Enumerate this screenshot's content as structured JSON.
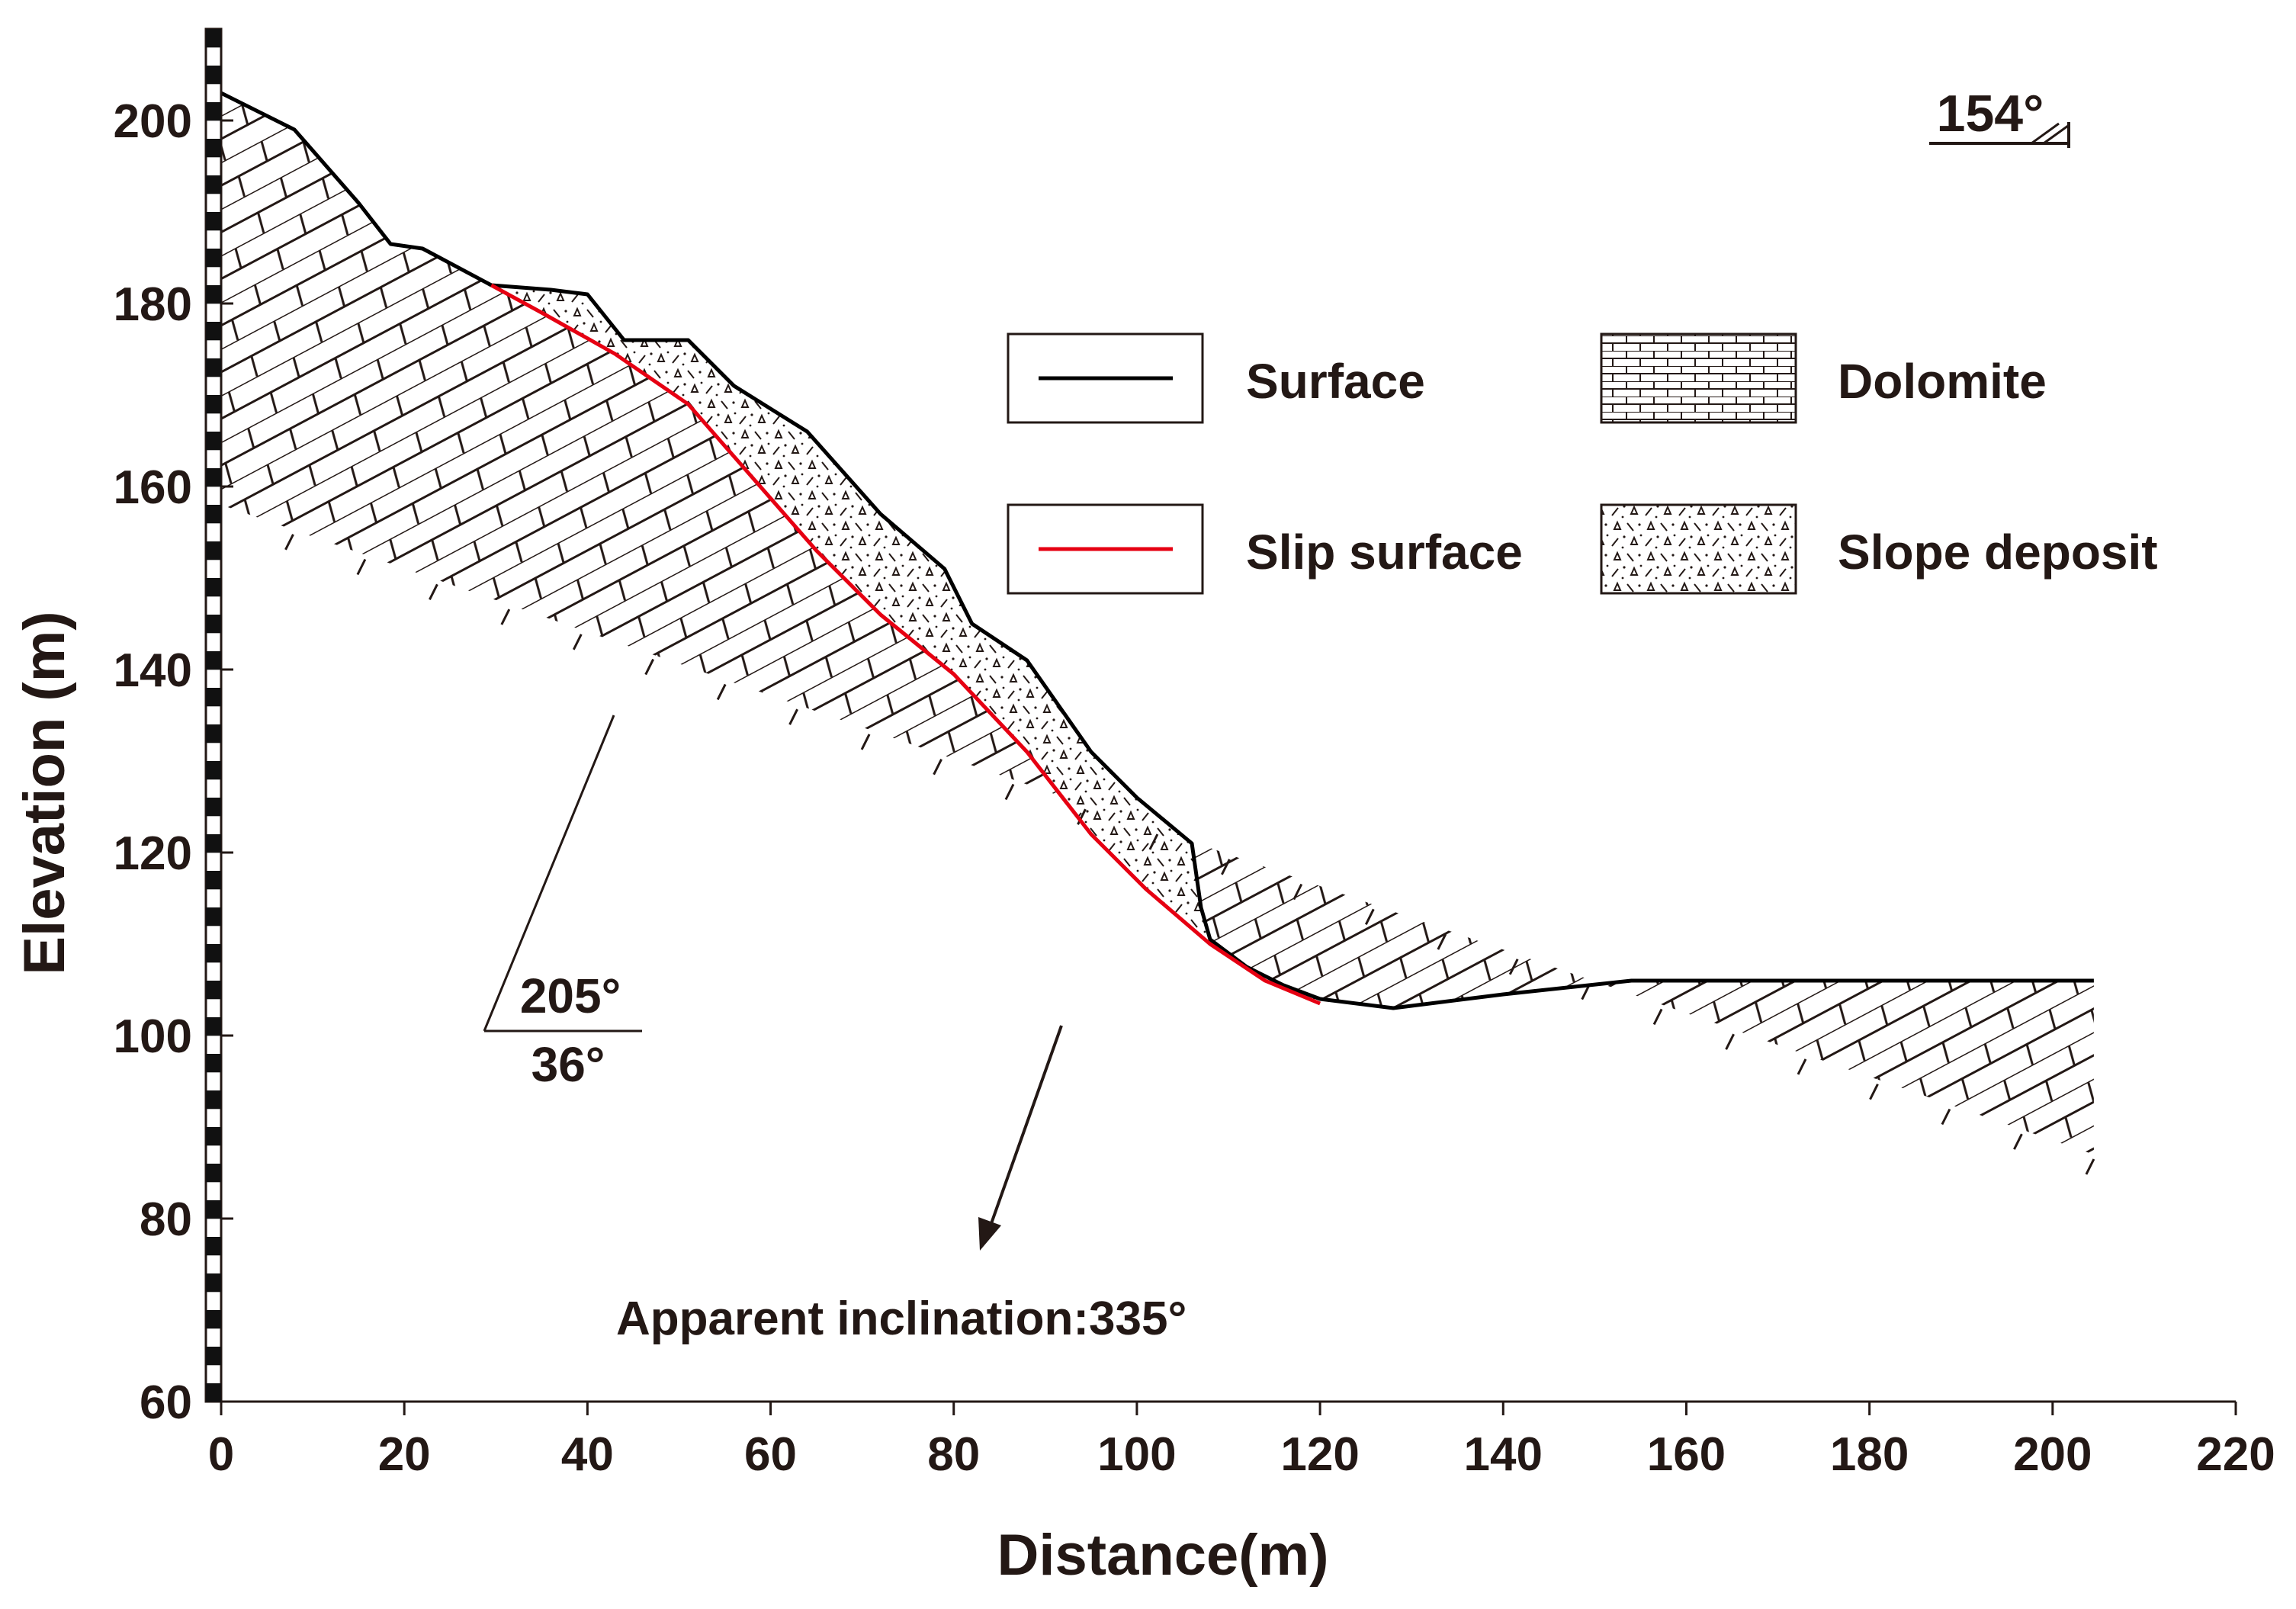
{
  "chart_data": {
    "type": "line",
    "title": "",
    "xlabel": "Distance(m)",
    "ylabel": "Elevation (m)",
    "xlim": [
      0,
      220
    ],
    "ylim": [
      60,
      210
    ],
    "xticks": [
      0,
      20,
      40,
      60,
      80,
      100,
      120,
      140,
      160,
      180,
      200,
      220
    ],
    "yticks": [
      60,
      80,
      100,
      120,
      140,
      160,
      180,
      200
    ],
    "xtick_labels": [
      "0",
      "20",
      "40",
      "60",
      "80",
      "100",
      "120",
      "140",
      "160",
      "180",
      "200",
      "220"
    ],
    "ytick_labels": [
      "60",
      "80",
      "100",
      "120",
      "140",
      "160",
      "180",
      "200"
    ],
    "grid": false,
    "series": [
      {
        "name": "Surface",
        "color": "#000000",
        "x": [
          0,
          8,
          15,
          18.5,
          22,
          29.5,
          36,
          40,
          44,
          51,
          56,
          64,
          72,
          79,
          82,
          88,
          95,
          100,
          106,
          107,
          108,
          110,
          112,
          116,
          120,
          128,
          140,
          154,
          204.5
        ],
        "y": [
          203,
          199,
          191,
          186.5,
          186,
          182,
          181.5,
          181,
          176,
          176,
          171,
          166,
          157,
          151,
          145,
          141,
          131,
          126,
          121,
          114,
          110.5,
          109,
          107.5,
          105.5,
          104,
          103,
          104.5,
          106,
          106
        ]
      },
      {
        "name": "Slip surface",
        "color": "#e60012",
        "x": [
          29.5,
          35,
          43,
          51,
          58,
          65,
          72,
          80,
          88,
          95,
          101,
          108,
          114,
          120
        ],
        "y": [
          182,
          179,
          174.5,
          169,
          161,
          153,
          146,
          139.5,
          131,
          122,
          116,
          110,
          106,
          103.5
        ]
      }
    ],
    "legend": [
      {
        "label": "Surface",
        "kind": "line",
        "color": "#000000"
      },
      {
        "label": "Dolomite",
        "kind": "pattern-dolomite"
      },
      {
        "label": "Slip surface",
        "kind": "line",
        "color": "#e60012"
      },
      {
        "label": "Slope deposit",
        "kind": "pattern-deposit"
      }
    ],
    "legend_position": "top-right",
    "annotations": {
      "strike": "154°",
      "dip_direction": "205°",
      "dip_angle": "36°",
      "apparent_inclination": "Apparent inclination:335°"
    },
    "rock_layers": {
      "dolomite_bottom_left": [
        0,
        158
      ],
      "dolomite_bottom_right": [
        204.5,
        87
      ],
      "strata_dip_slope": -0.53
    }
  }
}
